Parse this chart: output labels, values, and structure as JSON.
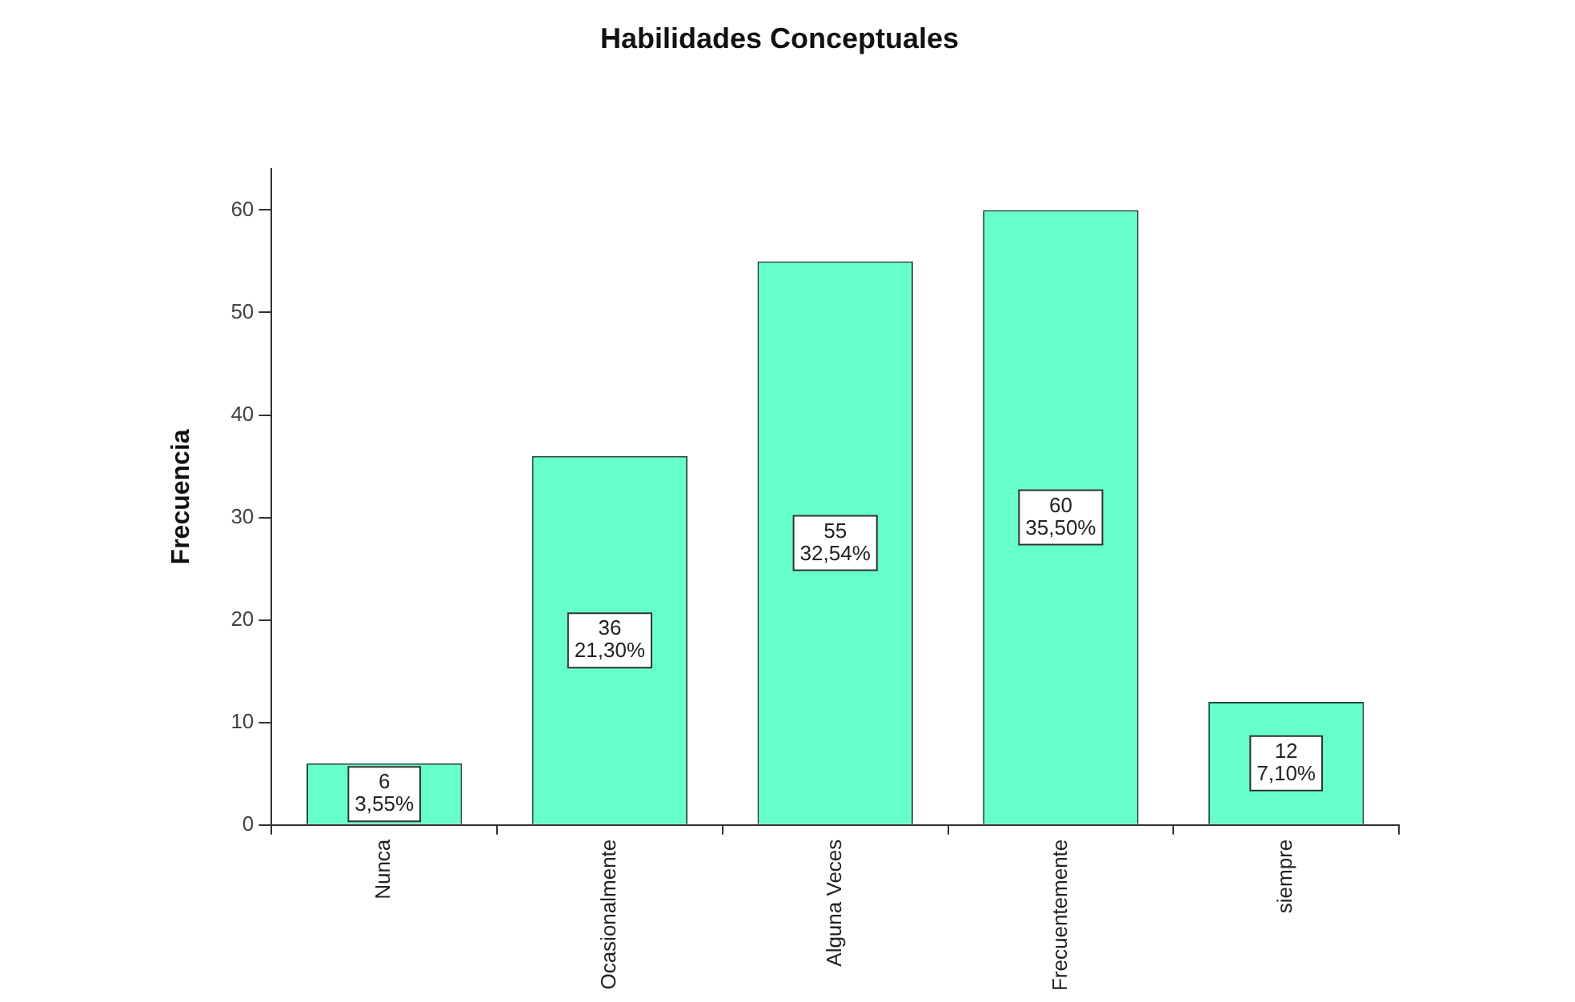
{
  "chart_data": {
    "type": "bar",
    "title": "Habilidades Conceptuales",
    "ylabel": "Frecuencia",
    "categories": [
      "Nunca",
      "Ocasionalmente",
      "Alguna Veces",
      "Frecuentemente",
      "siempre"
    ],
    "values": [
      6,
      36,
      55,
      60,
      12
    ],
    "color": "#66ffcc",
    "value_labels": [
      "6\n3,55%",
      "36\n21,30%",
      "55\n32,54%",
      "60\n35,50%",
      "12\n7,10%"
    ],
    "ylim": [
      0,
      64
    ],
    "yticks": [
      0,
      10,
      20,
      30,
      40,
      50,
      60
    ],
    "legend": false
  }
}
